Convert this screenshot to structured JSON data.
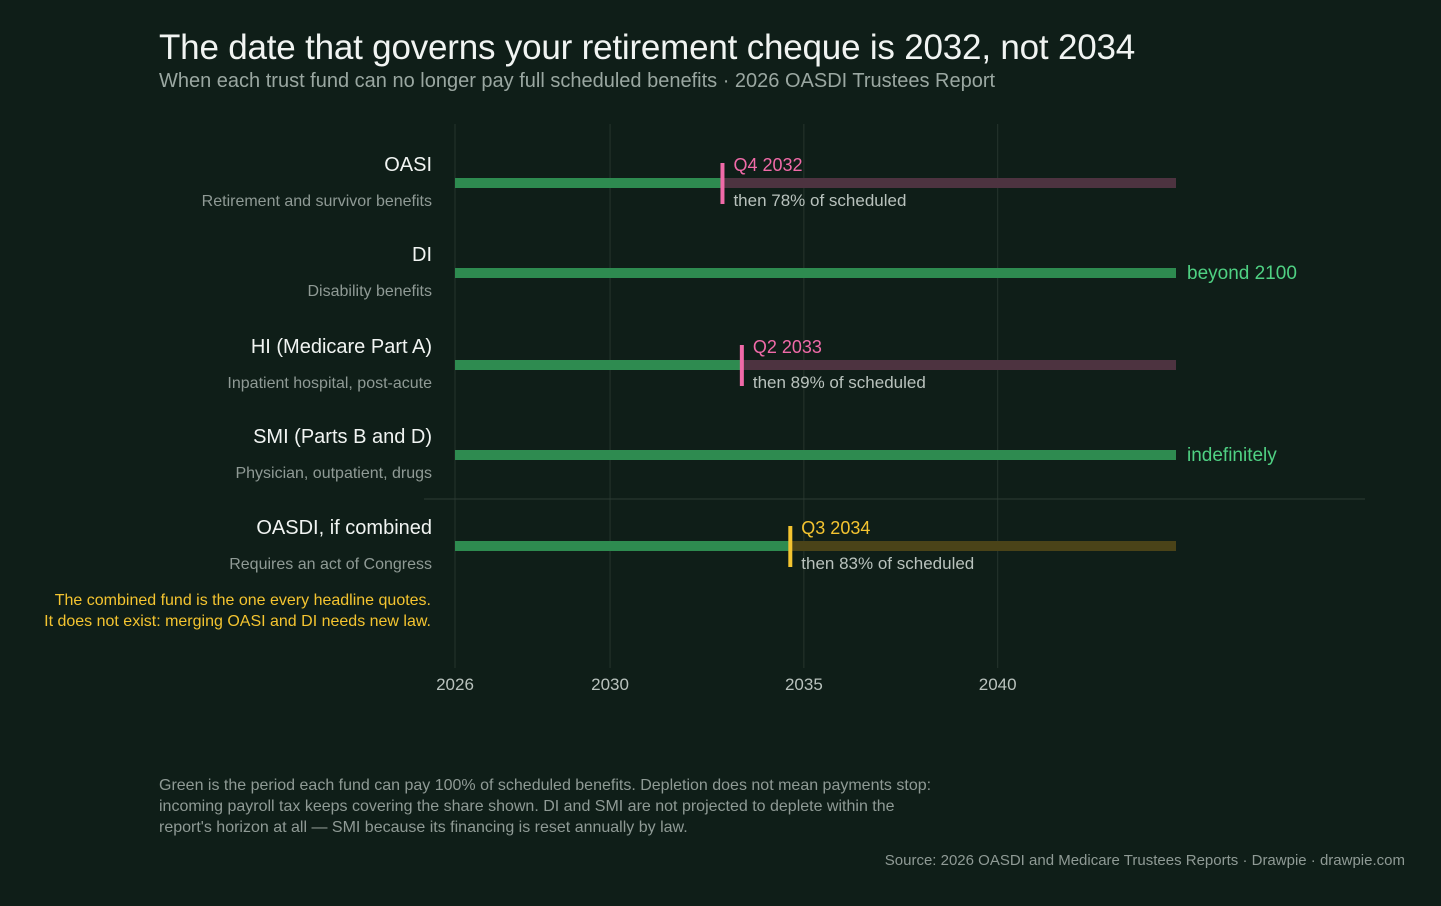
{
  "title": "The date that governs your retirement cheque is 2032, not 2034",
  "subtitle": "When each trust fund can no longer pay full scheduled benefits  ·  2026 OASDI Trustees Report",
  "note": "Green is the period each fund can pay 100% of scheduled benefits. Depletion does not mean payments stop: incoming payroll tax keeps covering the share shown. DI and SMI are not projected to deplete within the report's horizon at all — SMI because its financing is reset annually by law.",
  "source": "Source: 2026 OASDI and Medicare Trustees Reports  ·  Drawpie · drawpie.com",
  "colors": {
    "full": "#2e8b50",
    "after_pink": "#4d3340",
    "after_gold": "#4a4318",
    "pink": "#f06aa8",
    "gold": "#f4c430",
    "green_label": "#4fd183",
    "grid": "#26342d"
  },
  "chart_data": {
    "type": "bar",
    "xlim": [
      2026,
      2044.6
    ],
    "xticks": [
      2026,
      2030,
      2035,
      2040
    ],
    "xticklabels": [
      "2026",
      "2030",
      "2035",
      "2040"
    ],
    "grid": true,
    "funds": [
      {
        "name": "OASI",
        "desc": "Retirement and survivor benefits",
        "depletion": 2032.9,
        "depletion_label": "Q4 2032",
        "after_label": "then 78% of scheduled",
        "end_label": "",
        "color": "pink"
      },
      {
        "name": "DI",
        "desc": "Disability benefits",
        "depletion": null,
        "depletion_label": "",
        "after_label": "",
        "end_label": "beyond 2100",
        "color": "green"
      },
      {
        "name": "HI (Medicare Part A)",
        "desc": "Inpatient hospital, post-acute",
        "depletion": 2033.4,
        "depletion_label": "Q2 2033",
        "after_label": "then 89% of scheduled",
        "end_label": "",
        "color": "pink"
      },
      {
        "name": "SMI (Parts B and D)",
        "desc": "Physician, outpatient, drugs",
        "depletion": null,
        "depletion_label": "",
        "after_label": "",
        "end_label": "indefinitely",
        "color": "green"
      },
      {
        "name": "OASDI, if combined",
        "desc": "Requires an act of Congress",
        "depletion": 2034.65,
        "depletion_label": "Q3 2034",
        "after_label": "then 83% of scheduled",
        "end_label": "",
        "color": "gold"
      }
    ],
    "annotation": [
      "The combined fund is the one every headline quotes.",
      "It does not exist: merging OASI and DI needs new law."
    ]
  }
}
